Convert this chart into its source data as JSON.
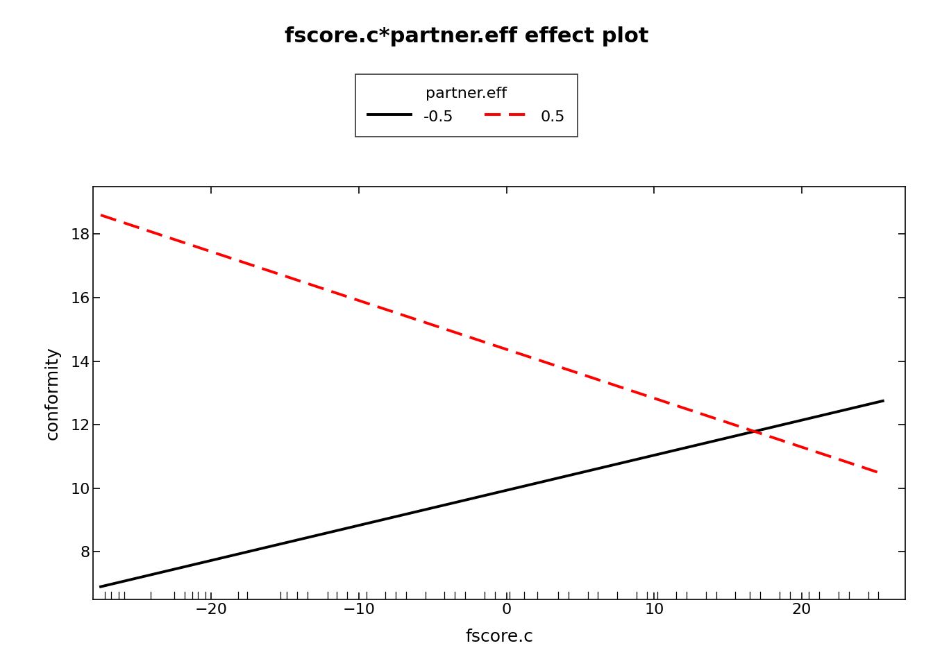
{
  "title": "fscore.c*partner.eff effect plot",
  "xlabel": "fscore.c",
  "ylabel": "conformity",
  "xlim": [
    -28,
    27
  ],
  "ylim": [
    6.5,
    19.5
  ],
  "xticks": [
    -20,
    -10,
    0,
    10,
    20
  ],
  "yticks": [
    8,
    10,
    12,
    14,
    16,
    18
  ],
  "line1_x": [
    -27.5,
    25.5
  ],
  "line1_y": [
    6.9,
    12.75
  ],
  "line2_x": [
    -27.5,
    25.5
  ],
  "line2_y": [
    18.6,
    10.45
  ],
  "line1_color": "#000000",
  "line1_style": "solid",
  "line1_label": "-0.5",
  "line2_color": "#FF0000",
  "line2_style": "dashed",
  "line2_label": "0.5",
  "legend_title": "partner.eff",
  "linewidth": 2.8,
  "rug_x": [
    -27.2,
    -26.8,
    -26.3,
    -25.9,
    -24.1,
    -22.5,
    -21.8,
    -21.3,
    -20.9,
    -20.4,
    -18.2,
    -17.6,
    -15.3,
    -14.9,
    -14.2,
    -13.5,
    -12.1,
    -11.5,
    -10.8,
    -9.5,
    -8.2,
    -7.5,
    -6.8,
    -5.5,
    -4.2,
    -3.5,
    -2.8,
    -1.5,
    -0.8,
    0.2,
    1.2,
    2.1,
    3.5,
    4.2,
    5.5,
    6.2,
    7.5,
    8.8,
    9.5,
    10.2,
    11.5,
    12.2,
    13.5,
    14.2,
    15.5,
    16.5,
    17.2,
    18.5,
    19.2,
    20.5,
    21.2,
    22.5,
    23.2,
    24.5,
    25.2
  ],
  "title_fontsize": 22,
  "label_fontsize": 18,
  "tick_fontsize": 16,
  "legend_fontsize": 16,
  "background_color": "#ffffff"
}
